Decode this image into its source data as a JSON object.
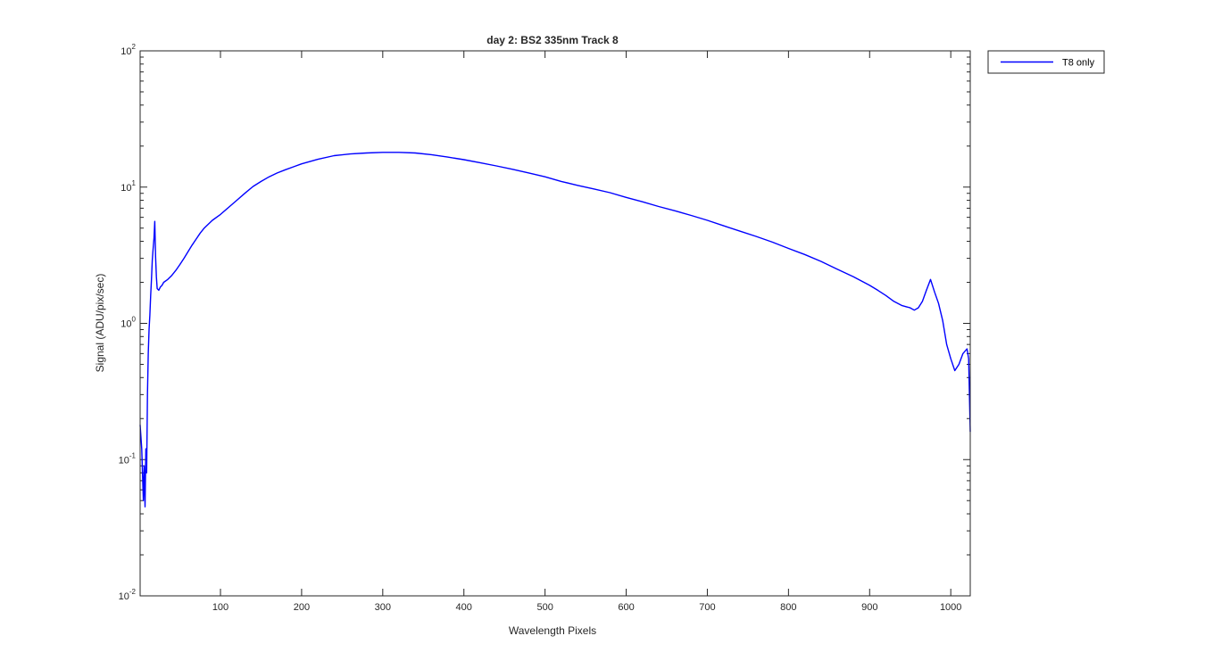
{
  "chart_data": {
    "type": "line",
    "title": "day 2: BS2  335nm  Track 8",
    "xlabel": "Wavelength Pixels",
    "ylabel": "Signal (ADU/pix/sec)",
    "xlim": [
      1,
      1024
    ],
    "ylim": [
      0.01,
      100
    ],
    "yscale": "log",
    "xticks": [
      100,
      200,
      300,
      400,
      500,
      600,
      700,
      800,
      900,
      1000
    ],
    "xtick_labels": [
      "100",
      "200",
      "300",
      "400",
      "500",
      "600",
      "700",
      "800",
      "900",
      "1000"
    ],
    "yticks": [
      {
        "value": 0.01,
        "base": "10",
        "exp": "-2"
      },
      {
        "value": 0.1,
        "base": "10",
        "exp": "-1"
      },
      {
        "value": 1,
        "base": "10",
        "exp": "0"
      },
      {
        "value": 10,
        "base": "10",
        "exp": "1"
      },
      {
        "value": 100,
        "base": "10",
        "exp": "2"
      }
    ],
    "legend": {
      "location": "outside-top-right",
      "entries": [
        "T8 only"
      ]
    },
    "series": [
      {
        "name": "T8 only",
        "color": "#0000ff",
        "x": [
          1,
          3,
          5,
          6,
          7,
          8,
          9,
          10,
          11,
          12,
          13,
          14,
          15,
          16,
          17,
          18,
          19,
          20,
          21,
          22,
          24,
          26,
          28,
          30,
          35,
          40,
          45,
          50,
          55,
          60,
          65,
          70,
          75,
          80,
          90,
          100,
          110,
          120,
          130,
          140,
          150,
          160,
          170,
          180,
          190,
          200,
          220,
          240,
          260,
          280,
          300,
          320,
          340,
          360,
          380,
          400,
          420,
          440,
          460,
          480,
          500,
          520,
          540,
          560,
          580,
          600,
          620,
          640,
          660,
          680,
          700,
          720,
          740,
          760,
          780,
          800,
          820,
          840,
          860,
          880,
          900,
          910,
          920,
          930,
          940,
          950,
          955,
          960,
          965,
          970,
          975,
          980,
          985,
          990,
          995,
          1000,
          1005,
          1010,
          1015,
          1020,
          1022,
          1024
        ],
        "values": [
          0.18,
          0.12,
          0.05,
          0.09,
          0.045,
          0.12,
          0.08,
          0.3,
          0.6,
          0.9,
          1.15,
          1.6,
          2.1,
          2.9,
          3.5,
          4.2,
          5.6,
          3.1,
          2.2,
          1.8,
          1.75,
          1.85,
          1.9,
          2.0,
          2.1,
          2.25,
          2.45,
          2.7,
          3.0,
          3.35,
          3.75,
          4.15,
          4.6,
          5.0,
          5.7,
          6.3,
          7.1,
          8.0,
          9.0,
          10.1,
          11.0,
          11.9,
          12.7,
          13.4,
          14.1,
          14.8,
          16.0,
          17.0,
          17.5,
          17.8,
          18.0,
          18.0,
          17.8,
          17.3,
          16.6,
          15.9,
          15.1,
          14.3,
          13.5,
          12.7,
          11.9,
          11.0,
          10.3,
          9.7,
          9.1,
          8.4,
          7.8,
          7.2,
          6.7,
          6.2,
          5.7,
          5.2,
          4.75,
          4.35,
          3.95,
          3.55,
          3.2,
          2.85,
          2.5,
          2.2,
          1.9,
          1.75,
          1.6,
          1.45,
          1.35,
          1.3,
          1.25,
          1.3,
          1.45,
          1.75,
          2.1,
          1.7,
          1.4,
          1.05,
          0.7,
          0.55,
          0.45,
          0.5,
          0.6,
          0.65,
          0.55,
          0.16
        ]
      }
    ]
  }
}
